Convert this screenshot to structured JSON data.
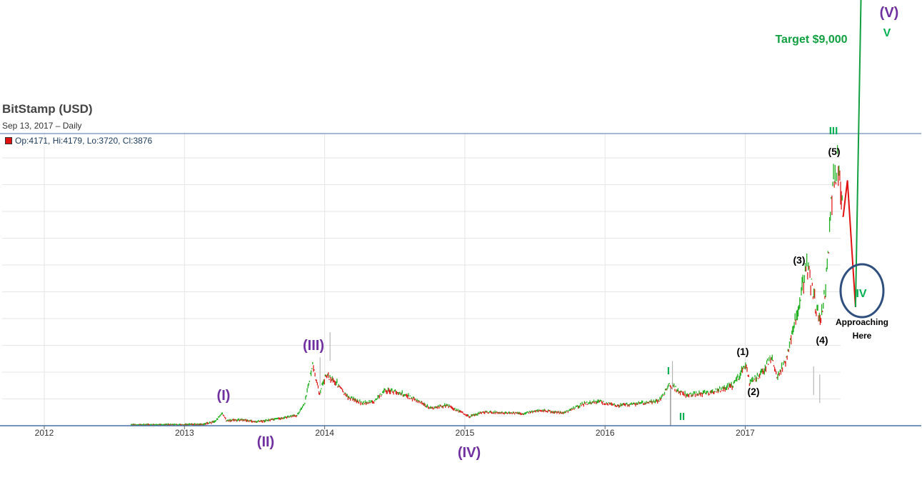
{
  "header": {
    "title": "BitStamp (USD)",
    "subtitle": "Sep 13, 2017 – Daily",
    "ohlc": "Op:4171, Hi:4179, Lo:3720, Cl:3876"
  },
  "colors": {
    "up": "#20b020",
    "down": "#e02020",
    "wave_primary": "#7030a0",
    "wave_minor": "#00b050",
    "wave_sub": "#000000",
    "projection_up": "#10a040",
    "projection_down": "#e01010",
    "circle": "#2f4f7f",
    "axis_line": "#4a70a8",
    "grid": "#e6e6e6"
  },
  "chart_data": {
    "type": "line",
    "x_ticks": [
      "2012",
      "2013",
      "2014",
      "2015",
      "2016",
      "2017"
    ],
    "xlim": [
      "2011-07-01",
      "2018-01-01"
    ],
    "grid": true,
    "series": [
      {
        "values": [
          [
            "2012-08-15",
            10
          ],
          [
            "2012-12-31",
            13
          ],
          [
            "2013-02-15",
            25
          ],
          [
            "2013-03-20",
            70
          ],
          [
            "2013-04-10",
            230
          ],
          [
            "2013-04-20",
            95
          ],
          [
            "2013-06-01",
            110
          ],
          [
            "2013-07-05",
            70
          ],
          [
            "2013-09-01",
            125
          ],
          [
            "2013-10-20",
            190
          ],
          [
            "2013-11-10",
            400
          ],
          [
            "2013-11-30",
            1120
          ],
          [
            "2013-12-18",
            600
          ],
          [
            "2014-01-05",
            950
          ],
          [
            "2014-02-01",
            800
          ],
          [
            "2014-02-25",
            550
          ],
          [
            "2014-04-10",
            420
          ],
          [
            "2014-05-10",
            440
          ],
          [
            "2014-06-05",
            650
          ],
          [
            "2014-07-15",
            620
          ],
          [
            "2014-08-20",
            500
          ],
          [
            "2014-10-05",
            320
          ],
          [
            "2014-11-15",
            380
          ],
          [
            "2015-01-14",
            170
          ],
          [
            "2015-02-15",
            250
          ],
          [
            "2015-04-01",
            245
          ],
          [
            "2015-06-01",
            225
          ],
          [
            "2015-07-15",
            290
          ],
          [
            "2015-09-15",
            230
          ],
          [
            "2015-11-03",
            400
          ],
          [
            "2015-12-15",
            450
          ],
          [
            "2016-02-01",
            370
          ],
          [
            "2016-04-01",
            420
          ],
          [
            "2016-05-20",
            450
          ],
          [
            "2016-06-17",
            760
          ],
          [
            "2016-08-01",
            570
          ],
          [
            "2016-10-01",
            615
          ],
          [
            "2016-12-01",
            750
          ],
          [
            "2017-01-04",
            1150
          ],
          [
            "2017-01-12",
            780
          ],
          [
            "2017-02-15",
            1000
          ],
          [
            "2017-03-10",
            1280
          ],
          [
            "2017-03-25",
            900
          ],
          [
            "2017-04-20",
            1250
          ],
          [
            "2017-05-25",
            2400
          ],
          [
            "2017-06-12",
            2950
          ],
          [
            "2017-06-25",
            2500
          ],
          [
            "2017-07-16",
            1850
          ],
          [
            "2017-08-01",
            2800
          ],
          [
            "2017-08-15",
            4300
          ],
          [
            "2017-09-01",
            4950
          ],
          [
            "2017-09-13",
            3876
          ]
        ]
      }
    ],
    "projection": [
      {
        "label": "down",
        "points": [
          [
            "2017-09-13",
            3876
          ],
          [
            "2017-09-24",
            4550
          ],
          [
            "2017-10-15",
            2200
          ]
        ]
      },
      {
        "label": "up",
        "points": [
          [
            "2017-10-15",
            2200
          ],
          [
            "2017-11-01",
            9000
          ]
        ]
      }
    ],
    "annotations": {
      "primary": [
        "(I)",
        "(II)",
        "(III)",
        "(IV)",
        "(V)"
      ],
      "minor": [
        "I",
        "II",
        "III",
        "IV",
        "V"
      ],
      "sub": [
        "(1)",
        "(2)",
        "(3)",
        "(4)",
        "(5)"
      ],
      "target": "Target $9,000",
      "approaching_line1": "Approaching",
      "approaching_line2": "Here"
    }
  }
}
